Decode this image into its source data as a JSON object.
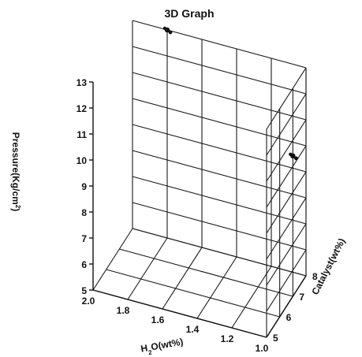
{
  "chart_data": {
    "type": "scatter",
    "title": "3D Graph",
    "xlabel_parts": [
      "H",
      "2",
      "O(wt%)"
    ],
    "ylabel": "Catalyst(wt%)",
    "zlabel_parts": [
      "Pressure(Kg/cm",
      "2",
      ")"
    ],
    "xlim": [
      1.0,
      2.0
    ],
    "ylim": [
      5,
      8
    ],
    "zlim": [
      5,
      13
    ],
    "x_ticks": [
      "2.0",
      "1.8",
      "1.6",
      "1.4",
      "1.2",
      "1.0"
    ],
    "y_ticks": [
      "5",
      "6",
      "7",
      "8"
    ],
    "z_ticks": [
      "5",
      "6",
      "7",
      "8",
      "9",
      "10",
      "11",
      "12",
      "13"
    ],
    "grid": true,
    "series": [
      {
        "points": [
          {
            "x": 1.8,
            "y": 8.0,
            "z": 13.0
          },
          {
            "x": 1.0,
            "y": 7.0,
            "z": 10.4
          }
        ]
      }
    ]
  }
}
